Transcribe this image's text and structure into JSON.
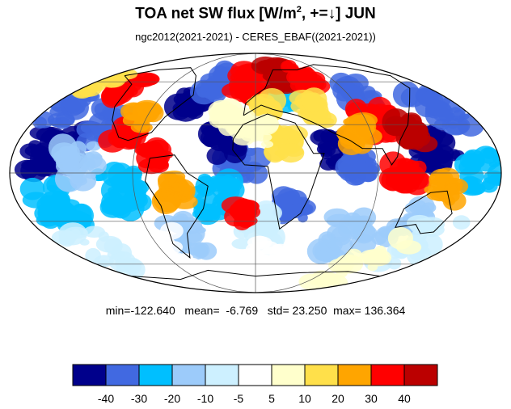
{
  "title": {
    "main": "TOA net SW flux [W/m",
    "sup": "2",
    "rest": ", +=↓]  JUN"
  },
  "subtitle": "ngc2012(2021-2021) - CERES_EBAF((2021-2021))",
  "stats": {
    "min_label": "min=",
    "min": "-122.640",
    "mean_label": "mean=",
    "mean": "-6.769",
    "std_label": "std=",
    "std": "23.250",
    "max_label": "max=",
    "max": "136.364"
  },
  "colorbar": {
    "colors": [
      "#00008b",
      "#4169e1",
      "#00bfff",
      "#9ccbfa",
      "#cdf0ff",
      "#ffffff",
      "#ffffcc",
      "#ffe04a",
      "#ffa500",
      "#ff0000",
      "#bb0000"
    ],
    "tick_labels": [
      "-40",
      "-30",
      "-20",
      "-10",
      "-5",
      "5",
      "10",
      "20",
      "30",
      "40"
    ]
  },
  "map": {
    "projection": "mollweide",
    "ocean_color": "#ffffff"
  }
}
